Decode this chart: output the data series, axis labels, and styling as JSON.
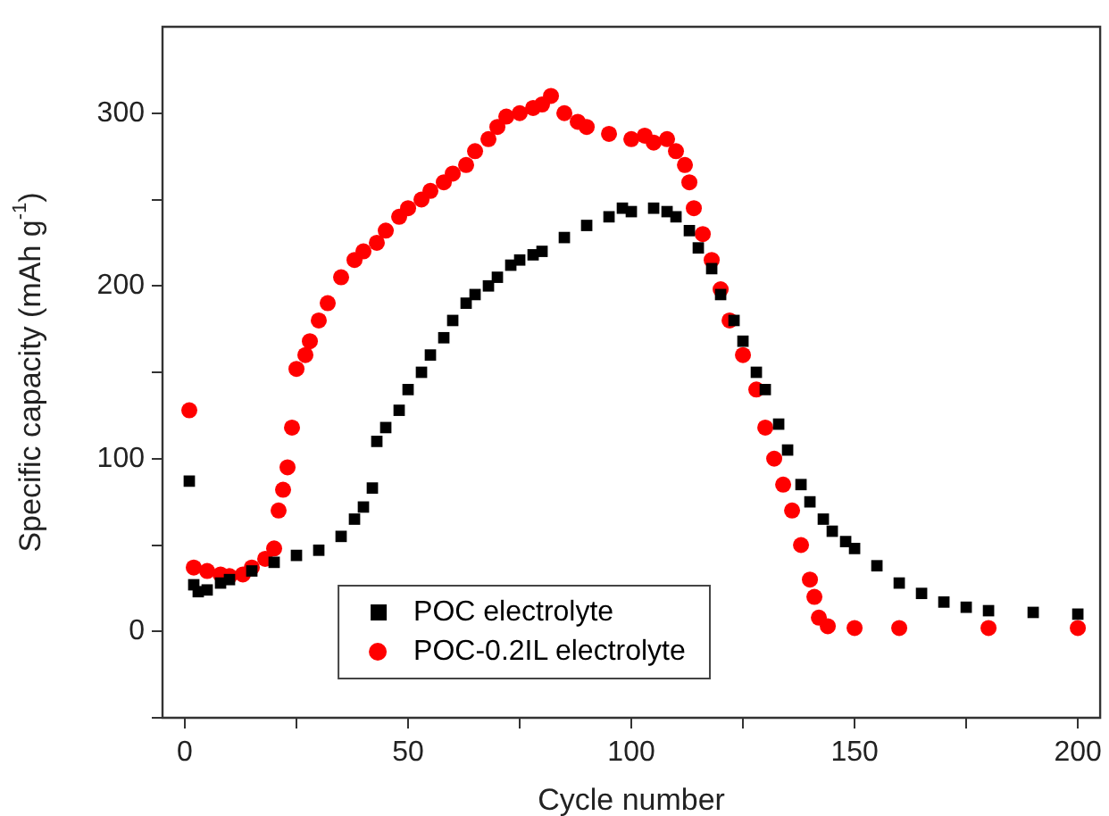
{
  "chart_data": {
    "type": "scatter",
    "xlabel": "Cycle number",
    "ylabel": "Specific capacity (mAh g$^{-1}$)",
    "xlim": [
      -5,
      205
    ],
    "ylim": [
      -50,
      350
    ],
    "xticks": [
      0,
      {
        "value": 25,
        "label": null
      },
      50,
      {
        "value": 75,
        "label": null
      },
      100,
      {
        "value": 125,
        "label": null
      },
      150,
      {
        "value": 175,
        "label": null
      },
      200
    ],
    "yticks": [
      {
        "value": -50,
        "label": null
      },
      0,
      {
        "value": 50,
        "label": null
      },
      100,
      {
        "value": 150,
        "label": null
      },
      200,
      {
        "value": 250,
        "label": null
      },
      300
    ],
    "grid": false,
    "legend": "bottom",
    "series": [
      {
        "name": "POC electrolyte",
        "color": "#000000",
        "marker": "square",
        "x": [
          1,
          2,
          3,
          5,
          8,
          10,
          15,
          20,
          25,
          30,
          35,
          38,
          40,
          42,
          43,
          45,
          48,
          50,
          53,
          55,
          58,
          60,
          63,
          65,
          68,
          70,
          73,
          75,
          78,
          80,
          85,
          90,
          95,
          98,
          100,
          105,
          108,
          110,
          113,
          115,
          118,
          120,
          123,
          125,
          128,
          130,
          133,
          135,
          138,
          140,
          143,
          145,
          148,
          150,
          155,
          160,
          165,
          170,
          175,
          180,
          190,
          200
        ],
        "values": [
          87,
          27,
          23,
          24,
          28,
          30,
          35,
          40,
          44,
          47,
          55,
          65,
          72,
          83,
          110,
          118,
          128,
          140,
          150,
          160,
          170,
          180,
          190,
          195,
          200,
          205,
          212,
          215,
          218,
          220,
          228,
          235,
          240,
          245,
          243,
          245,
          243,
          240,
          232,
          222,
          210,
          195,
          180,
          168,
          150,
          140,
          120,
          105,
          85,
          75,
          65,
          58,
          52,
          48,
          38,
          28,
          22,
          17,
          14,
          12,
          11,
          10
        ]
      },
      {
        "name": "POC-0.2IL electrolyte",
        "color": "#ff0000",
        "marker": "circle",
        "x": [
          1,
          2,
          5,
          8,
          10,
          13,
          15,
          18,
          20,
          21,
          22,
          23,
          24,
          25,
          27,
          28,
          30,
          32,
          35,
          38,
          40,
          43,
          45,
          48,
          50,
          53,
          55,
          58,
          60,
          63,
          65,
          68,
          70,
          72,
          75,
          78,
          80,
          82,
          85,
          88,
          90,
          95,
          100,
          103,
          105,
          108,
          110,
          112,
          113,
          114,
          116,
          118,
          120,
          122,
          125,
          128,
          130,
          132,
          134,
          136,
          138,
          140,
          141,
          142,
          144,
          150,
          160,
          180,
          200
        ],
        "values": [
          128,
          37,
          35,
          33,
          32,
          33,
          37,
          42,
          48,
          70,
          82,
          95,
          118,
          152,
          160,
          168,
          180,
          190,
          205,
          215,
          220,
          225,
          232,
          240,
          245,
          250,
          255,
          260,
          265,
          270,
          278,
          285,
          292,
          298,
          300,
          303,
          305,
          310,
          300,
          295,
          292,
          288,
          285,
          287,
          283,
          285,
          278,
          270,
          260,
          245,
          230,
          215,
          198,
          180,
          160,
          140,
          118,
          100,
          85,
          70,
          50,
          30,
          20,
          8,
          3,
          2,
          2,
          2,
          2
        ]
      }
    ]
  }
}
